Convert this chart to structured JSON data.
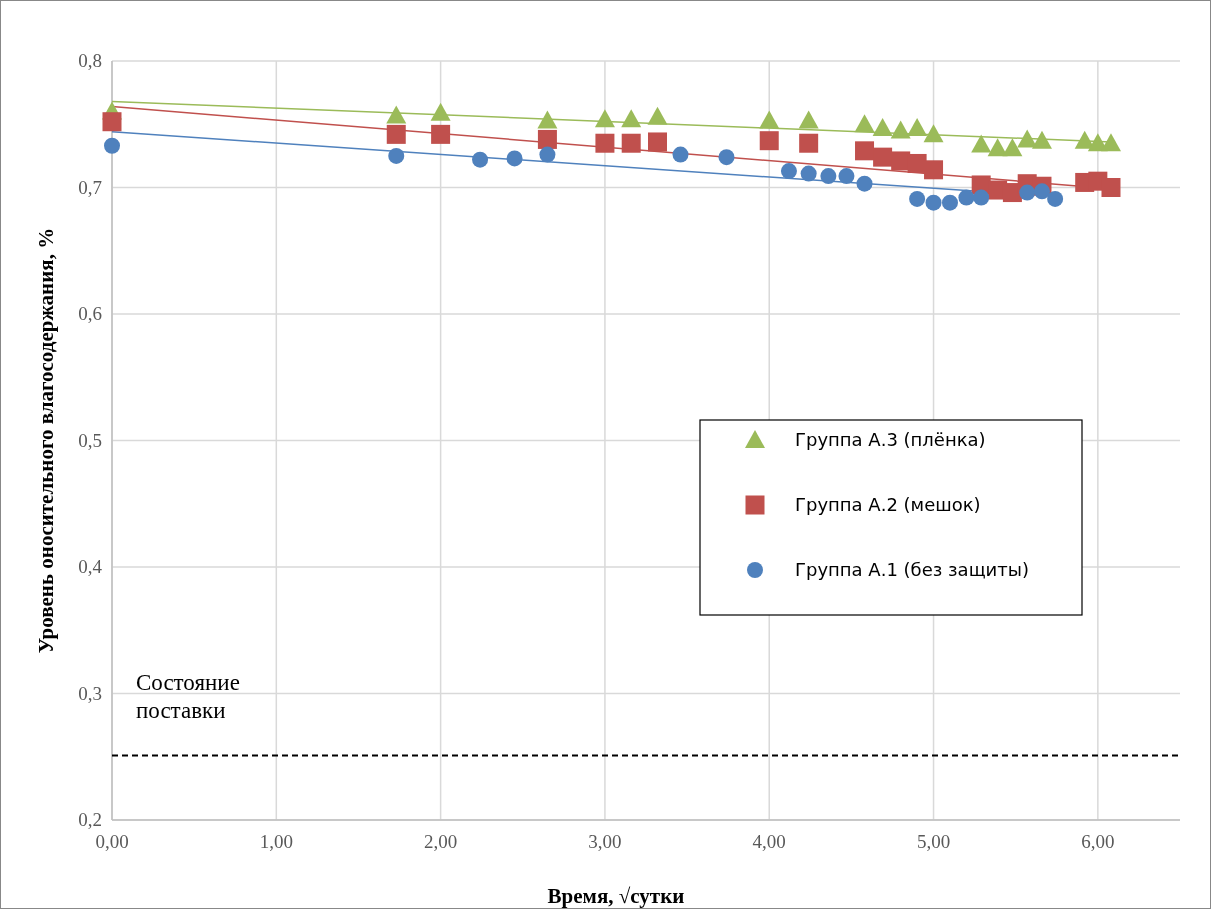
{
  "chart_data": {
    "type": "scatter",
    "xlabel": "Время, √сутки",
    "ylabel": "Уровень оносительного влагосодержания, %",
    "xlim": [
      0,
      6.5
    ],
    "ylim": [
      0.2,
      0.8
    ],
    "xticks": [
      {
        "value": 0,
        "label": "0,00"
      },
      {
        "value": 1,
        "label": "1,00"
      },
      {
        "value": 2,
        "label": "2,00"
      },
      {
        "value": 3,
        "label": "3,00"
      },
      {
        "value": 4,
        "label": "4,00"
      },
      {
        "value": 5,
        "label": "5,00"
      },
      {
        "value": 6,
        "label": "6,00"
      }
    ],
    "yticks": [
      {
        "value": 0.2,
        "label": "0,2"
      },
      {
        "value": 0.3,
        "label": "0,3"
      },
      {
        "value": 0.4,
        "label": "0,4"
      },
      {
        "value": 0.5,
        "label": "0,5"
      },
      {
        "value": 0.6,
        "label": "0,6"
      },
      {
        "value": 0.7,
        "label": "0,7"
      },
      {
        "value": 0.8,
        "label": "0,8"
      }
    ],
    "grid": true,
    "legend": "right",
    "series": [
      {
        "name": "Группа А.3 (плёнка)",
        "marker": "triangle",
        "color": "#9bbb59",
        "x": [
          0,
          1.73,
          2.0,
          2.65,
          3.0,
          3.16,
          3.32,
          4.0,
          4.24,
          4.58,
          4.69,
          4.8,
          4.9,
          5.0,
          5.29,
          5.39,
          5.48,
          5.57,
          5.66,
          5.92,
          6.0,
          6.08
        ],
        "values": [
          0.76,
          0.757,
          0.759,
          0.753,
          0.754,
          0.754,
          0.756,
          0.753,
          0.753,
          0.75,
          0.747,
          0.745,
          0.747,
          0.742,
          0.734,
          0.731,
          0.731,
          0.738,
          0.737,
          0.737,
          0.735,
          0.735
        ]
      },
      {
        "name": "Группа А.2 (мешок)",
        "marker": "square",
        "color": "#c0504d",
        "x": [
          0,
          1.73,
          2.0,
          2.65,
          3.0,
          3.16,
          3.32,
          4.0,
          4.24,
          4.58,
          4.69,
          4.8,
          4.9,
          5.0,
          5.29,
          5.39,
          5.48,
          5.57,
          5.66,
          5.92,
          6.0,
          6.08
        ],
        "values": [
          0.752,
          0.742,
          0.742,
          0.738,
          0.735,
          0.735,
          0.736,
          0.737,
          0.735,
          0.729,
          0.724,
          0.721,
          0.719,
          0.714,
          0.702,
          0.698,
          0.696,
          0.703,
          0.701,
          0.704,
          0.705,
          0.7
        ]
      },
      {
        "name": "Группа А.1 (без защиты)",
        "marker": "circle",
        "color": "#4f81bd",
        "x": [
          0,
          1.73,
          2.24,
          2.45,
          2.65,
          3.46,
          3.74,
          4.12,
          4.24,
          4.36,
          4.47,
          4.58,
          4.9,
          5.0,
          5.1,
          5.2,
          5.29,
          5.57,
          5.66,
          5.74
        ],
        "values": [
          0.733,
          0.725,
          0.722,
          0.723,
          0.726,
          0.726,
          0.724,
          0.713,
          0.711,
          0.709,
          0.709,
          0.703,
          0.691,
          0.688,
          0.688,
          0.692,
          0.692,
          0.696,
          0.697,
          0.691
        ]
      },
      {
        "type": "line",
        "color": "#9bbb59",
        "x": [
          0,
          6.08
        ],
        "values": [
          0.768,
          0.736
        ]
      },
      {
        "type": "line",
        "color": "#c0504d",
        "x": [
          0,
          6.08
        ],
        "values": [
          0.764,
          0.699
        ]
      },
      {
        "type": "line",
        "color": "#4f81bd",
        "x": [
          0,
          5.6
        ],
        "values": [
          0.744,
          0.694
        ]
      }
    ],
    "ref_lines": [
      {
        "axis": "y",
        "value": 0.251,
        "label": "Состояние поставки",
        "color": "#000000",
        "line_style": "dashed"
      }
    ]
  }
}
